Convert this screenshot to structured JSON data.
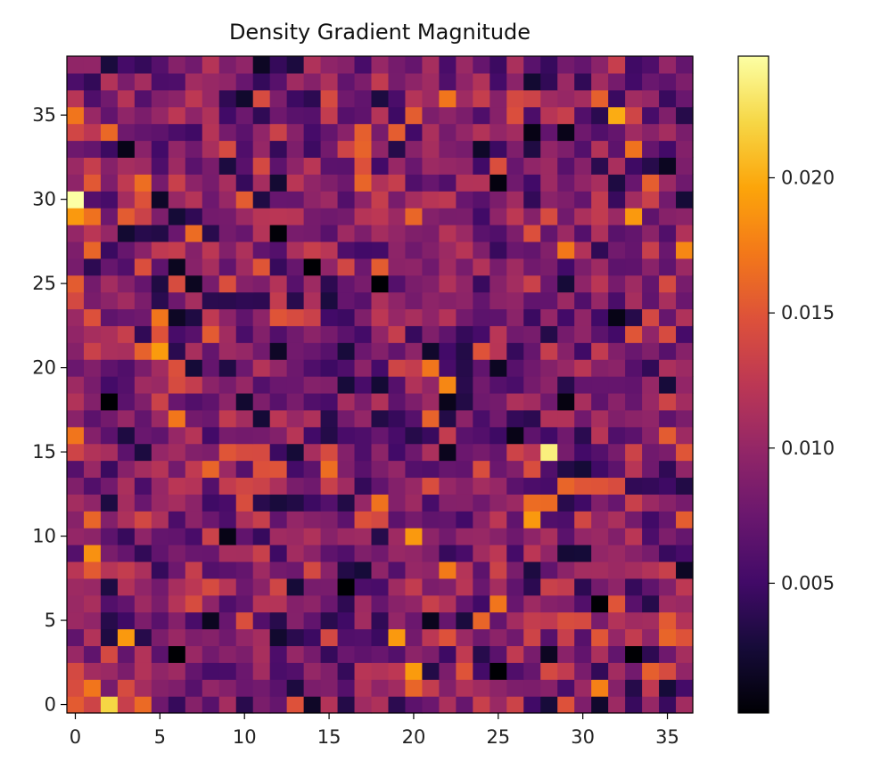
{
  "chart_data": {
    "type": "heatmap",
    "title": "Density Gradient Magnitude",
    "xlabel": "",
    "ylabel": "",
    "colormap": "inferno",
    "rows": 39,
    "cols": 37,
    "xlim": [
      -0.5,
      36.5
    ],
    "ylim": [
      -0.5,
      38.5
    ],
    "origin": "lower",
    "x_ticks": [
      0,
      5,
      10,
      15,
      20,
      25,
      30,
      35
    ],
    "y_ticks": [
      0,
      5,
      10,
      15,
      20,
      25,
      30,
      35
    ],
    "vmin": 0.0002,
    "vmax": 0.0245,
    "colorbar_ticks": [
      "0.005",
      "0.010",
      "0.015",
      "0.020"
    ],
    "colorbar_tick_values": [
      0.005,
      0.01,
      0.015,
      0.02
    ],
    "seed": 7
  }
}
